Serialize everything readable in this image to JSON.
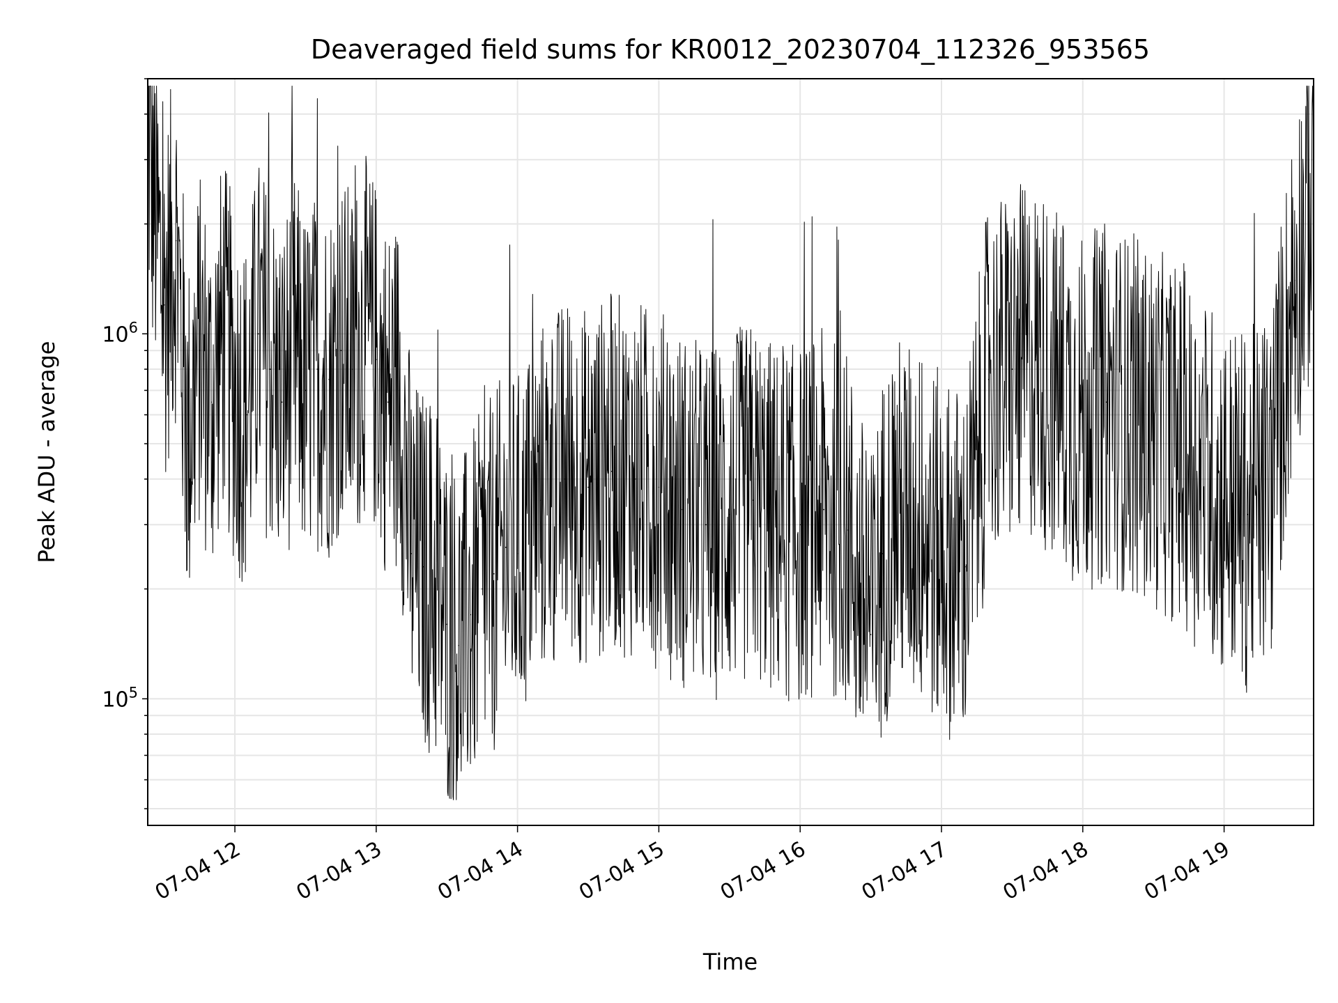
{
  "chart_data": {
    "type": "line",
    "title": "Deaveraged field sums for KR0012_20230704_112326_953565",
    "xlabel": "Time",
    "ylabel": "Peak ADU - average",
    "y_scale": "log",
    "ylim": [
      45000,
      5000000
    ],
    "xlim": [
      "07-04 11:23",
      "07-04 19:38"
    ],
    "grid": true,
    "line_color": "#000000",
    "grid_color": "#e6e6e6",
    "x_ticks": [
      "07-04 12",
      "07-04 13",
      "07-04 14",
      "07-04 15",
      "07-04 16",
      "07-04 17",
      "07-04 18",
      "07-04 19"
    ],
    "y_ticks": [
      {
        "base": "10",
        "exp": "5",
        "value": 100000
      },
      {
        "base": "10",
        "exp": "6",
        "value": 1000000
      }
    ],
    "series": [
      {
        "x": [
          "07-04 11:23",
          "07-04 11:30",
          "07-04 11:35",
          "07-04 11:40",
          "07-04 11:45",
          "07-04 11:50",
          "07-04 11:55",
          "07-04 12:00",
          "07-04 12:05",
          "07-04 12:10",
          "07-04 12:15",
          "07-04 12:20",
          "07-04 12:25",
          "07-04 12:30",
          "07-04 12:35",
          "07-04 12:40",
          "07-04 12:45",
          "07-04 12:50",
          "07-04 12:55",
          "07-04 13:00",
          "07-04 13:05",
          "07-04 13:10",
          "07-04 13:15",
          "07-04 13:20",
          "07-04 13:25",
          "07-04 13:30",
          "07-04 13:35",
          "07-04 13:40",
          "07-04 13:45",
          "07-04 13:50",
          "07-04 13:55",
          "07-04 14:00",
          "07-04 14:10",
          "07-04 14:20",
          "07-04 14:30",
          "07-04 14:40",
          "07-04 14:50",
          "07-04 15:00",
          "07-04 15:10",
          "07-04 15:20",
          "07-04 15:30",
          "07-04 15:40",
          "07-04 15:50",
          "07-04 16:00",
          "07-04 16:10",
          "07-04 16:20",
          "07-04 16:30",
          "07-04 16:35",
          "07-04 16:40",
          "07-04 16:50",
          "07-04 17:00",
          "07-04 17:10",
          "07-04 17:20",
          "07-04 17:30",
          "07-04 17:40",
          "07-04 17:50",
          "07-04 18:00",
          "07-04 18:10",
          "07-04 18:20",
          "07-04 18:30",
          "07-04 18:40",
          "07-04 18:50",
          "07-04 19:00",
          "07-04 19:10",
          "07-04 19:20",
          "07-04 19:30",
          "07-04 19:38"
        ],
        "values": [
          3500000,
          1200000,
          1800000,
          500000,
          900000,
          650000,
          1000000,
          700000,
          600000,
          1000000,
          800000,
          650000,
          900000,
          700000,
          800000,
          750000,
          900000,
          800000,
          1000000,
          850000,
          650000,
          700000,
          250000,
          230000,
          200000,
          160000,
          140000,
          170000,
          200000,
          220000,
          260000,
          250000,
          350000,
          400000,
          380000,
          420000,
          400000,
          380000,
          330000,
          300000,
          320000,
          350000,
          300000,
          300000,
          330000,
          290000,
          150000,
          250000,
          320000,
          300000,
          250000,
          230000,
          750000,
          800000,
          850000,
          700000,
          600000,
          650000,
          600000,
          550000,
          500000,
          420000,
          360000,
          320000,
          400000,
          1400000,
          2500000
        ]
      }
    ]
  }
}
